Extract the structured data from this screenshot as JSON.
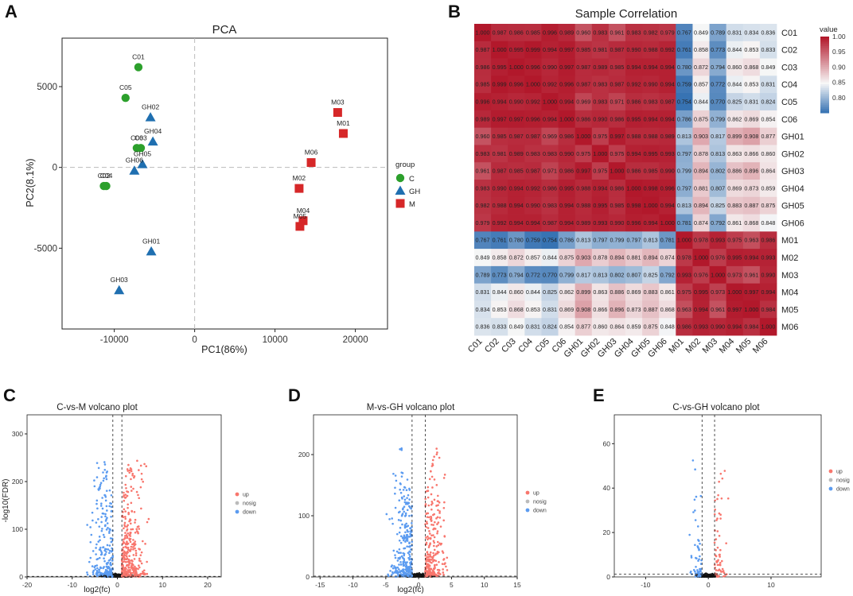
{
  "chart_data": [
    {
      "panel": "A",
      "type": "scatter",
      "title": "PCA",
      "xlabel": "PC1(86%)",
      "ylabel": "PC2(8.1%)",
      "xlim": [
        -16500,
        24000
      ],
      "ylim": [
        -10000,
        8000
      ],
      "xticks": [
        -10000,
        0,
        10000,
        20000
      ],
      "xtick_labels": [
        "-10000",
        "0",
        "10000",
        "20000"
      ],
      "yticks": [
        -5000,
        0,
        5000
      ],
      "ytick_labels": [
        "-5000",
        "0",
        "5000"
      ],
      "legend_title": "group",
      "legend": [
        {
          "name": "C",
          "color": "#2ca02c",
          "shape": "circle"
        },
        {
          "name": "GH",
          "color": "#1f6fb0",
          "shape": "triangle"
        },
        {
          "name": "M",
          "color": "#d62728",
          "shape": "square"
        }
      ],
      "points": [
        {
          "label": "C01",
          "group": "C",
          "x": -7000,
          "y": 6200
        },
        {
          "label": "C05",
          "group": "C",
          "x": -8600,
          "y": 4300
        },
        {
          "label": "C03",
          "group": "C",
          "x": -6700,
          "y": 1200
        },
        {
          "label": "C06",
          "group": "C",
          "x": -7200,
          "y": 1200
        },
        {
          "label": "C04",
          "group": "C",
          "x": -11000,
          "y": -1150
        },
        {
          "label": "C02",
          "group": "C",
          "x": -11300,
          "y": -1150
        },
        {
          "label": "GH02",
          "group": "GH",
          "x": -5500,
          "y": 3100
        },
        {
          "label": "GH04",
          "group": "GH",
          "x": -5200,
          "y": 1600
        },
        {
          "label": "GH05",
          "group": "GH",
          "x": -6500,
          "y": 200
        },
        {
          "label": "GH06",
          "group": "GH",
          "x": -7500,
          "y": -200
        },
        {
          "label": "GH01",
          "group": "GH",
          "x": -5400,
          "y": -5200
        },
        {
          "label": "GH03",
          "group": "GH",
          "x": -9400,
          "y": -7600
        },
        {
          "label": "M03",
          "group": "M",
          "x": 17800,
          "y": 3400
        },
        {
          "label": "M01",
          "group": "M",
          "x": 18500,
          "y": 2100
        },
        {
          "label": "M06",
          "group": "M",
          "x": 14500,
          "y": 300
        },
        {
          "label": "M02",
          "group": "M",
          "x": 13000,
          "y": -1300
        },
        {
          "label": "M04",
          "group": "M",
          "x": 13500,
          "y": -3300
        },
        {
          "label": "M05",
          "group": "M",
          "x": 13100,
          "y": -3650
        }
      ]
    },
    {
      "panel": "B",
      "type": "heatmap",
      "title": "Sample Correlation",
      "samples": [
        "C01",
        "C02",
        "C03",
        "C04",
        "C05",
        "C06",
        "GH01",
        "GH02",
        "GH03",
        "GH04",
        "GH05",
        "GH06",
        "M01",
        "M02",
        "M03",
        "M04",
        "M05",
        "M06"
      ],
      "colorbar_title": "value",
      "colorbar_range": [
        0.75,
        1.0
      ],
      "colorbar_ticks": [
        1.0,
        0.95,
        0.9,
        0.85,
        0.8
      ],
      "colorbar_tick_labels": [
        "1.00",
        "0.95",
        "0.90",
        "0.85",
        "0.80"
      ],
      "values": [
        [
          "1.000",
          "0.987",
          "0.986",
          "0.985",
          "0.996",
          "0.989",
          "0.960",
          "0.983",
          "0.961",
          "0.983",
          "0.982",
          "0.979",
          "0.767",
          "0.849",
          "0.789",
          "0.831",
          "0.834",
          "0.836"
        ],
        [
          "0.987",
          "1.000",
          "0.995",
          "0.999",
          "0.994",
          "0.997",
          "0.985",
          "0.981",
          "0.987",
          "0.990",
          "0.988",
          "0.992",
          "0.761",
          "0.858",
          "0.773",
          "0.844",
          "0.853",
          "0.833"
        ],
        [
          "0.986",
          "0.995",
          "1.000",
          "0.996",
          "0.990",
          "0.997",
          "0.987",
          "0.989",
          "0.985",
          "0.994",
          "0.994",
          "0.994",
          "0.780",
          "0.872",
          "0.794",
          "0.860",
          "0.868",
          "0.849"
        ],
        [
          "0.985",
          "0.999",
          "0.996",
          "1.000",
          "0.992",
          "0.996",
          "0.987",
          "0.983",
          "0.987",
          "0.992",
          "0.990",
          "0.994",
          "0.759",
          "0.857",
          "0.772",
          "0.844",
          "0.853",
          "0.831"
        ],
        [
          "0.996",
          "0.994",
          "0.990",
          "0.992",
          "1.000",
          "0.994",
          "0.969",
          "0.983",
          "0.971",
          "0.986",
          "0.983",
          "0.987",
          "0.754",
          "0.844",
          "0.770",
          "0.825",
          "0.831",
          "0.824"
        ],
        [
          "0.989",
          "0.997",
          "0.997",
          "0.996",
          "0.994",
          "1.000",
          "0.986",
          "0.990",
          "0.986",
          "0.995",
          "0.994",
          "0.994",
          "0.786",
          "0.875",
          "0.799",
          "0.862",
          "0.869",
          "0.854"
        ],
        [
          "0.960",
          "0.985",
          "0.987",
          "0.987",
          "0.969",
          "0.986",
          "1.000",
          "0.975",
          "0.997",
          "0.988",
          "0.988",
          "0.989",
          "0.813",
          "0.903",
          "0.817",
          "0.899",
          "0.908",
          "0.877"
        ],
        [
          "0.983",
          "0.981",
          "0.989",
          "0.983",
          "0.983",
          "0.990",
          "0.975",
          "1.000",
          "0.975",
          "0.994",
          "0.995",
          "0.993",
          "0.797",
          "0.878",
          "0.813",
          "0.863",
          "0.866",
          "0.860"
        ],
        [
          "0.961",
          "0.987",
          "0.985",
          "0.987",
          "0.971",
          "0.986",
          "0.997",
          "0.975",
          "1.000",
          "0.986",
          "0.985",
          "0.990",
          "0.799",
          "0.894",
          "0.802",
          "0.886",
          "0.896",
          "0.864"
        ],
        [
          "0.983",
          "0.990",
          "0.994",
          "0.992",
          "0.986",
          "0.995",
          "0.988",
          "0.994",
          "0.986",
          "1.000",
          "0.998",
          "0.996",
          "0.797",
          "0.881",
          "0.807",
          "0.869",
          "0.873",
          "0.859"
        ],
        [
          "0.982",
          "0.988",
          "0.994",
          "0.990",
          "0.983",
          "0.994",
          "0.988",
          "0.995",
          "0.985",
          "0.998",
          "1.000",
          "0.994",
          "0.813",
          "0.894",
          "0.825",
          "0.883",
          "0.887",
          "0.875"
        ],
        [
          "0.979",
          "0.992",
          "0.994",
          "0.994",
          "0.987",
          "0.994",
          "0.989",
          "0.993",
          "0.990",
          "0.996",
          "0.994",
          "1.000",
          "0.781",
          "0.874",
          "0.792",
          "0.861",
          "0.868",
          "0.848"
        ],
        [
          "0.767",
          "0.761",
          "0.780",
          "0.759",
          "0.754",
          "0.786",
          "0.813",
          "0.797",
          "0.799",
          "0.797",
          "0.813",
          "0.781",
          "1.000",
          "0.978",
          "0.993",
          "0.975",
          "0.963",
          "0.986"
        ],
        [
          "0.849",
          "0.858",
          "0.872",
          "0.857",
          "0.844",
          "0.875",
          "0.903",
          "0.878",
          "0.894",
          "0.881",
          "0.894",
          "0.874",
          "0.978",
          "1.000",
          "0.976",
          "0.995",
          "0.994",
          "0.993"
        ],
        [
          "0.789",
          "0.773",
          "0.794",
          "0.772",
          "0.770",
          "0.799",
          "0.817",
          "0.813",
          "0.802",
          "0.807",
          "0.825",
          "0.792",
          "0.993",
          "0.976",
          "1.000",
          "0.973",
          "0.961",
          "0.990"
        ],
        [
          "0.831",
          "0.844",
          "0.860",
          "0.844",
          "0.825",
          "0.862",
          "0.899",
          "0.863",
          "0.886",
          "0.869",
          "0.883",
          "0.861",
          "0.975",
          "0.995",
          "0.973",
          "1.000",
          "0.997",
          "0.994"
        ],
        [
          "0.834",
          "0.853",
          "0.868",
          "0.853",
          "0.831",
          "0.869",
          "0.908",
          "0.866",
          "0.896",
          "0.873",
          "0.887",
          "0.868",
          "0.963",
          "0.994",
          "0.961",
          "0.997",
          "1.000",
          "0.984"
        ],
        [
          "0.836",
          "0.833",
          "0.849",
          "0.831",
          "0.824",
          "0.854",
          "0.877",
          "0.860",
          "0.864",
          "0.859",
          "0.875",
          "0.848",
          "0.986",
          "0.993",
          "0.990",
          "0.994",
          "0.984",
          "1.000"
        ]
      ]
    },
    {
      "panel": "C",
      "type": "scatter",
      "title": "C-vs-M volcano plot",
      "xlabel": "log2(fc)",
      "ylabel": "-log10(FDR)",
      "xlim": [
        -20,
        23
      ],
      "ylim": [
        0,
        340
      ],
      "xticks": [
        -20,
        -10,
        0,
        10,
        20
      ],
      "xtick_labels": [
        "-20",
        "-10",
        "0",
        "10",
        "20"
      ],
      "yticks": [
        0,
        100,
        200,
        300
      ],
      "ytick_labels": [
        "0",
        "100",
        "200",
        "300"
      ],
      "fc_threshold": 1,
      "fdr_line": 1.3,
      "spread_x": 6,
      "max_y": 290,
      "legend": [
        {
          "name": "up",
          "color": "#f8766d"
        },
        {
          "name": "nosig",
          "color": "#bbbbbb"
        },
        {
          "name": "down",
          "color": "#5b9bf0"
        }
      ]
    },
    {
      "panel": "D",
      "type": "scatter",
      "title": "M-vs-GH volcano plot",
      "xlabel": "log2(fc)",
      "ylabel": "",
      "xlim": [
        -16,
        15
      ],
      "ylim": [
        0,
        265
      ],
      "xticks": [
        -15,
        -10,
        -5,
        0,
        5,
        10,
        15
      ],
      "xtick_labels": [
        "-15",
        "-10",
        "-5",
        "0",
        "5",
        "10",
        "15"
      ],
      "yticks": [
        0,
        100,
        200
      ],
      "ytick_labels": [
        "0",
        "100",
        "200"
      ],
      "fc_threshold": 1,
      "fdr_line": 1.3,
      "spread_x": 4,
      "max_y": 250,
      "legend": [
        {
          "name": "up",
          "color": "#f8766d"
        },
        {
          "name": "nosig",
          "color": "#bbbbbb"
        },
        {
          "name": "down",
          "color": "#5b9bf0"
        }
      ]
    },
    {
      "panel": "E",
      "type": "scatter",
      "title": "C-vs-GH volcano plot",
      "xlabel": "",
      "ylabel": "",
      "xlim": [
        -15,
        18
      ],
      "ylim": [
        0,
        73
      ],
      "xticks": [
        -10,
        0,
        10
      ],
      "xtick_labels": [
        "-10",
        "0",
        "10"
      ],
      "yticks": [
        0,
        20,
        40,
        60
      ],
      "ytick_labels": [
        "0",
        "20",
        "40",
        "60"
      ],
      "fc_threshold": 1,
      "fdr_line": 1.3,
      "spread_x": 2.5,
      "max_y": 66,
      "legend": [
        {
          "name": "up",
          "color": "#f8766d"
        },
        {
          "name": "nosig",
          "color": "#bbbbbb"
        },
        {
          "name": "down",
          "color": "#5b9bf0"
        }
      ]
    }
  ],
  "panel_letters": [
    "A",
    "B",
    "C",
    "D",
    "E"
  ],
  "heatmap_colors": {
    "low": "#2f6db0",
    "mid": "#f7f7f7",
    "high": "#b2182b"
  }
}
